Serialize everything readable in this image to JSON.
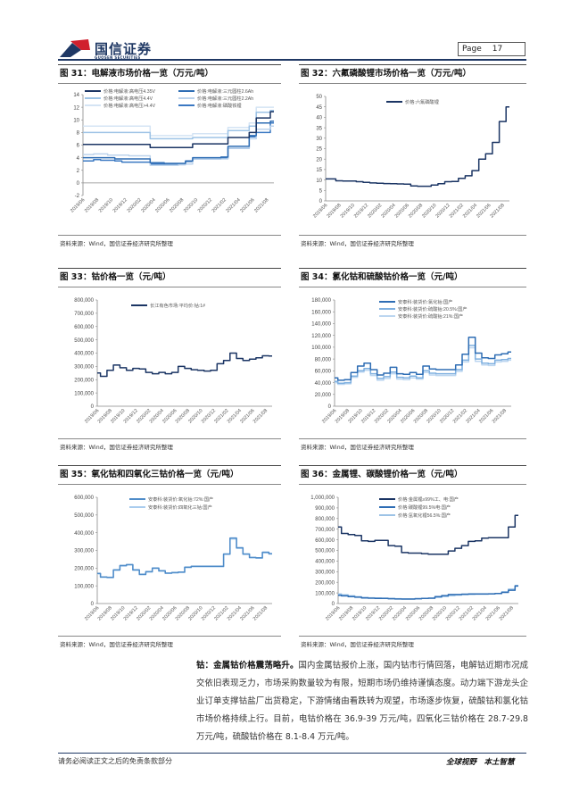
{
  "header": {
    "brand": "国信证券",
    "brand_sub": "GUOSEN SECURITIES",
    "page_label": "Page",
    "page_number": "17"
  },
  "colors": {
    "navy": "#1b3564",
    "blue": "#2e6db4",
    "mid": "#5b9bd5",
    "light": "#9dc3e6",
    "pale": "#c9dcf0"
  },
  "chart_data": [
    {
      "type": "line",
      "title": "图 31：电解液市场价格一览（万元/吨）",
      "source": "资料来源：Wind，国信证券经济研究所整理",
      "xtick_labels": [
        "2019/06",
        "2019/08",
        "2019/10",
        "2019/12",
        "2020/02",
        "2020/04",
        "2020/06",
        "2020/08",
        "2020/10",
        "2020/12",
        "2021/02",
        "2021/04",
        "2021/06",
        "2021/08"
      ],
      "ylim": [
        -2,
        14
      ],
      "yticks": [
        -2,
        0,
        2,
        4,
        6,
        8,
        10,
        12,
        14
      ],
      "series": [
        {
          "name": "价格:电解液:高电压4.35V",
          "color": "#1b3564",
          "values": [
            6.1,
            6.1,
            6.1,
            6.1,
            6.1,
            6.1,
            6.1,
            6.1,
            6.1,
            6.1,
            5.6,
            5.6,
            5.6,
            5.6,
            5.6,
            5.6,
            6.2,
            6.2,
            6.2,
            6.2,
            6.2,
            7.2,
            7.2,
            7.2,
            8.0,
            10.3,
            10.3,
            11.3
          ]
        },
        {
          "name": "价格:电解液:三元圆柱2.6Ah",
          "color": "#2e6db4",
          "values": [
            4.0,
            4.0,
            4.0,
            4.0,
            4.0,
            3.8,
            3.8,
            3.8,
            3.8,
            3.8,
            3.2,
            3.2,
            3.1,
            3.1,
            3.1,
            3.5,
            4.0,
            4.0,
            4.0,
            4.0,
            4.1,
            5.8,
            5.8,
            5.8,
            7.5,
            9.5,
            9.5,
            9.8
          ]
        },
        {
          "name": "价格:电解液:高电压4.4V",
          "color": "#9dc3e6",
          "values": [
            8.0,
            8.0,
            8.0,
            8.0,
            8.0,
            8.0,
            8.0,
            8.0,
            8.0,
            8.0,
            7.0,
            7.0,
            7.0,
            7.0,
            7.0,
            7.0,
            7.2,
            7.2,
            7.2,
            7.2,
            7.2,
            8.3,
            8.3,
            8.3,
            9.0,
            11.2,
            11.2,
            11.5
          ]
        },
        {
          "name": "价格:电解液:三元圆柱2.2Ah",
          "color": "#bcd3ec",
          "values": [
            4.5,
            4.5,
            4.6,
            4.6,
            4.4,
            4.4,
            4.4,
            4.3,
            4.3,
            4.3,
            2.8,
            2.8,
            2.8,
            2.8,
            2.9,
            3.0,
            3.8,
            3.8,
            3.8,
            3.8,
            3.8,
            5.5,
            5.5,
            5.5,
            7.0,
            8.5,
            8.5,
            9.0
          ]
        },
        {
          "name": "价格:电解液:高电压>4.4V",
          "color": "#d4e4f4",
          "values": [
            9.0,
            9.0,
            9.0,
            9.0,
            9.0,
            9.0,
            9.0,
            9.0,
            9.0,
            9.0,
            7.5,
            7.5,
            7.5,
            7.5,
            7.5,
            7.5,
            7.8,
            7.8,
            7.8,
            7.8,
            7.8,
            8.8,
            8.8,
            8.8,
            9.5,
            12.0,
            12.0,
            12.0
          ]
        },
        {
          "name": "价格:电解液:磷酸铁锂",
          "color": "#3a78c2",
          "values": [
            3.5,
            3.5,
            3.7,
            3.6,
            3.6,
            3.5,
            3.3,
            3.3,
            3.3,
            3.3,
            3.0,
            3.0,
            2.9,
            2.9,
            2.9,
            3.4,
            3.8,
            3.8,
            3.8,
            3.8,
            3.9,
            5.5,
            5.5,
            5.5,
            7.3,
            8.0,
            8.0,
            9.5
          ]
        }
      ]
    },
    {
      "type": "line",
      "title": "图 32：六氟磷酸锂市场价格一览（万元/吨）",
      "source": "资料来源：Wind，国信证券经济研究所整理",
      "xtick_labels": [
        "2019/06",
        "2019/08",
        "2019/10",
        "2019/12",
        "2020/02",
        "2020/04",
        "2020/06",
        "2020/08",
        "2020/10",
        "2020/12",
        "2021/02",
        "2021/04",
        "2021/06",
        "2021/08"
      ],
      "ylim": [
        0,
        50
      ],
      "yticks": [
        0,
        5,
        10,
        15,
        20,
        25,
        30,
        35,
        40,
        45,
        50
      ],
      "series": [
        {
          "name": "价格:六氟磷酸锂",
          "color": "#1b3564",
          "values": [
            10.5,
            10.5,
            9.6,
            9.5,
            9.5,
            9.2,
            8.9,
            8.6,
            8.4,
            8.3,
            8.2,
            8.1,
            8.0,
            7.2,
            7.0,
            7.0,
            7.6,
            8.2,
            9.2,
            9.3,
            10.8,
            12.0,
            14.5,
            20.0,
            22.5,
            28.0,
            38.0,
            45.0
          ]
        }
      ]
    },
    {
      "type": "line",
      "title": "图 33：钴价格一览（元/吨）",
      "source": "资料来源：Wind，国信证券经济研究所整理",
      "xtick_labels": [
        "2019/06",
        "2019/08",
        "2019/10",
        "2019/12",
        "2020/02",
        "2020/04",
        "2020/06",
        "2020/08",
        "2020/10",
        "2020/12",
        "2021/02",
        "2021/04",
        "2021/06",
        "2021/08"
      ],
      "ylim": [
        0,
        800000
      ],
      "yticks": [
        0,
        100000,
        200000,
        300000,
        400000,
        500000,
        600000,
        700000,
        800000
      ],
      "series": [
        {
          "name": "长江有色市场:平均价:钴:1#",
          "color": "#1b3564",
          "values": [
            250000,
            225000,
            270000,
            310000,
            290000,
            270000,
            285000,
            280000,
            255000,
            245000,
            255000,
            245000,
            255000,
            300000,
            285000,
            275000,
            270000,
            265000,
            270000,
            320000,
            345000,
            400000,
            360000,
            345000,
            355000,
            365000,
            380000,
            378000
          ]
        }
      ]
    },
    {
      "type": "line",
      "title": "图 34：氯化钴和硫酸钴价格一览（元/吨）",
      "source": "资料来源：Wind，国信证券经济研究所整理",
      "xtick_labels": [
        "2019/06",
        "2019/08",
        "2019/10",
        "2019/12",
        "2020/02",
        "2020/04",
        "2020/06",
        "2020/08",
        "2020/10",
        "2020/12",
        "2021/02",
        "2021/04",
        "2021/06",
        "2021/08"
      ],
      "ylim": [
        0,
        180000
      ],
      "yticks": [
        0,
        20000,
        40000,
        60000,
        80000,
        100000,
        120000,
        140000,
        160000,
        180000
      ],
      "series": [
        {
          "name": "安泰科:装货价:氯化钴:国产",
          "color": "#2e6db4",
          "values": [
            48000,
            44000,
            45000,
            57000,
            68000,
            73000,
            62000,
            53000,
            56000,
            66000,
            55000,
            54000,
            57000,
            54000,
            68000,
            63000,
            62000,
            62000,
            62000,
            70000,
            88000,
            117000,
            90000,
            82000,
            81000,
            87000,
            89000,
            92000
          ]
        },
        {
          "name": "安泰科:装货价:硫酸钴:20.5%:国产",
          "color": "#7fb0e0",
          "values": [
            42000,
            39000,
            40000,
            51000,
            60000,
            64000,
            55000,
            47000,
            50000,
            58000,
            49000,
            48000,
            51000,
            48000,
            60000,
            56000,
            55000,
            55000,
            55000,
            62000,
            78000,
            103000,
            80000,
            73000,
            72000,
            78000,
            79000,
            81000
          ]
        },
        {
          "name": "安泰科:装货价:硫酸钴:21%:国产",
          "color": "#bcd6f0",
          "values": [
            40000,
            37000,
            38000,
            49000,
            58000,
            61000,
            52000,
            44000,
            47000,
            55000,
            46000,
            45000,
            48000,
            46000,
            57000,
            53000,
            52000,
            52000,
            52000,
            59000,
            75000,
            99000,
            76000,
            70000,
            69000,
            75000,
            76000,
            78000
          ]
        }
      ]
    },
    {
      "type": "line",
      "title": "图 35：氧化钴和四氧化三钴价格一览（元/吨）",
      "source": "资料来源：Wind，国信证券经济研究所整理",
      "xtick_labels": [
        "2019/06",
        "2019/08",
        "2019/10",
        "2019/12",
        "2020/02",
        "2020/04",
        "2020/06",
        "2020/08",
        "2020/10",
        "2020/12",
        "2021/02",
        "2021/04",
        "2021/06",
        "2021/08"
      ],
      "ylim": [
        0,
        600000
      ],
      "yticks": [
        0,
        100000,
        200000,
        300000,
        400000,
        500000,
        600000
      ],
      "series": [
        {
          "name": "安泰科:装货价:氧化钴:72%:国产",
          "color": "#4f8cc9",
          "values": [
            170000,
            150000,
            148000,
            190000,
            215000,
            220000,
            190000,
            165000,
            180000,
            200000,
            185000,
            172000,
            175000,
            178000,
            205000,
            210000,
            210000,
            210000,
            210000,
            210000,
            280000,
            370000,
            315000,
            280000,
            260000,
            258000,
            290000,
            282000
          ]
        },
        {
          "name": "安泰科:装货价:四氧化三钴:国产",
          "color": "#a9ccee",
          "values": [
            168000,
            148000,
            146000,
            188000,
            212000,
            218000,
            188000,
            163000,
            178000,
            198000,
            183000,
            170000,
            173000,
            176000,
            203000,
            208000,
            208000,
            208000,
            208000,
            208000,
            278000,
            365000,
            312000,
            278000,
            258000,
            256000,
            287000,
            280000
          ]
        }
      ]
    },
    {
      "type": "line",
      "title": "图 36：金属锂、碳酸锂价格一览（元/吨）",
      "source": "资料来源：Wind，国信证券经济研究所整理",
      "xtick_labels": [
        "2019/06",
        "2019/08",
        "2019/10",
        "2019/12",
        "2020/02",
        "2020/04",
        "2020/06",
        "2020/08",
        "2020/10",
        "2020/12",
        "2021/02",
        "2021/04",
        "2021/06",
        "2021/08"
      ],
      "ylim": [
        0,
        1000000
      ],
      "yticks": [
        0,
        100000,
        200000,
        300000,
        400000,
        500000,
        600000,
        700000,
        800000,
        900000,
        1000000
      ],
      "series": [
        {
          "name": "价格:金属锂≥99%工、电:国产",
          "color": "#1b3564",
          "values": [
            720000,
            660000,
            650000,
            640000,
            590000,
            585000,
            595000,
            595000,
            545000,
            540000,
            480000,
            475000,
            475000,
            470000,
            465000,
            465000,
            465000,
            495000,
            520000,
            545000,
            585000,
            590000,
            615000,
            620000,
            620000,
            620000,
            720000,
            830000
          ]
        },
        {
          "name": "价格:碳酸锂99.5%电:国产",
          "color": "#2e6db4",
          "values": [
            78000,
            72000,
            65000,
            60000,
            52000,
            50000,
            48000,
            48000,
            45000,
            43000,
            42000,
            42000,
            45000,
            48000,
            50000,
            65000,
            75000,
            85000,
            85000,
            88000,
            90000,
            90000,
            90000,
            92000,
            95000,
            105000,
            125000,
            165000
          ]
        },
        {
          "name": "价格:氢氧化锂56.5%:国产",
          "color": "#9dc3e6",
          "values": [
            90000,
            82000,
            72000,
            64000,
            58000,
            54000,
            52000,
            50000,
            48000,
            45000,
            44000,
            44000,
            46000,
            48000,
            50000,
            58000,
            66000,
            75000,
            80000,
            84000,
            86000,
            88000,
            88000,
            90000,
            95000,
            110000,
            135000,
            170000
          ]
        }
      ]
    }
  ],
  "body": {
    "lead": "钴：金属钴价格震荡略升。",
    "text": "国内金属钴报价上涨，国内钴市行情回落，电解钴近期市况成交依旧表现乏力，市场采购数量较为有限，短期市场仍维持谨慎态度。动力端下游龙头企业订单支撑钴盐厂出货稳定，下游情绪由看跌转为观望，市场逐步恢复，硫酸钴和氯化钴市场价格持续上行。目前，电钴价格在 36.9-39 万元/吨，四氧化三钴价格在 28.7-29.8 万元/吨，硫酸钴价格在 8.1-8.4 万元/吨。"
  },
  "footer": {
    "disclaimer": "请务必阅读正文之后的免责条款部分",
    "slogan": "全球视野　本土智慧"
  }
}
